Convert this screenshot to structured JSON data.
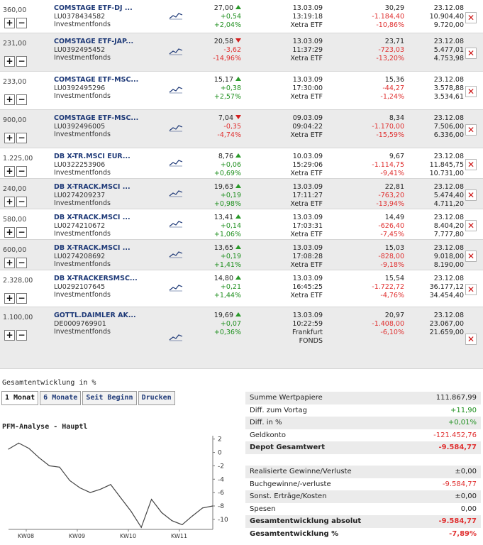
{
  "rows": [
    {
      "qty": "360,00",
      "name": "COMSTAGE ETF-DJ ...",
      "isin": "LU0378434582",
      "type": "Investmentfonds",
      "price": "27,00",
      "trend": "up",
      "chg": "+0,54",
      "pct": "+2,04%",
      "date": "13.03.09",
      "time": "13:19:18",
      "exchange": "Xetra ETF",
      "value": "30,29",
      "gain": "-1.184,40",
      "gainpct": "-10,86%",
      "sign": "neg",
      "buydate": "23.12.08",
      "buyval": "10.904,40",
      "curval": "9.720,00"
    },
    {
      "qty": "231,00",
      "name": "COMSTAGE ETF-JAP...",
      "isin": "LU0392495452",
      "type": "Investmentfonds",
      "price": "20,58",
      "trend": "down",
      "chg": "-3,62",
      "pct": "-14,96%",
      "date": "13.03.09",
      "time": "11:37:29",
      "exchange": "Xetra ETF",
      "value": "23,71",
      "gain": "-723,03",
      "gainpct": "-13,20%",
      "sign": "neg",
      "buydate": "23.12.08",
      "buyval": "5.477,01",
      "curval": "4.753,98"
    },
    {
      "qty": "233,00",
      "name": "COMSTAGE ETF-MSC...",
      "isin": "LU0392495296",
      "type": "Investmentfonds",
      "price": "15,17",
      "trend": "up",
      "chg": "+0,38",
      "pct": "+2,57%",
      "date": "13.03.09",
      "time": "17:30:00",
      "exchange": "Xetra ETF",
      "value": "15,36",
      "gain": "-44,27",
      "gainpct": "-1,24%",
      "sign": "neg",
      "buydate": "23.12.08",
      "buyval": "3.578,88",
      "curval": "3.534,61"
    },
    {
      "qty": "900,00",
      "name": "COMSTAGE ETF-MSC...",
      "isin": "LU0392496005",
      "type": "Investmentfonds",
      "price": "7,04",
      "trend": "down",
      "chg": "-0,35",
      "pct": "-4,74%",
      "date": "09.03.09",
      "time": "09:04:22",
      "exchange": "Xetra ETF",
      "value": "8,34",
      "gain": "-1.170,00",
      "gainpct": "-15,59%",
      "sign": "neg",
      "buydate": "23.12.08",
      "buyval": "7.506,00",
      "curval": "6.336,00"
    },
    {
      "qty": "1.225,00",
      "name": "DB X-TR.MSCI EUR...",
      "isin": "LU0322253906",
      "type": "Investmentfonds",
      "price": "8,76",
      "trend": "up",
      "chg": "+0,06",
      "pct": "+0,69%",
      "date": "10.03.09",
      "time": "15:29:06",
      "exchange": "Xetra ETF",
      "value": "9,67",
      "gain": "-1.114,75",
      "gainpct": "-9,41%",
      "sign": "neg",
      "buydate": "23.12.08",
      "buyval": "11.845,75",
      "curval": "10.731,00"
    },
    {
      "qty": "240,00",
      "name": "DB X-TRACK.MSCI ...",
      "isin": "LU0274209237",
      "type": "Investmentfonds",
      "price": "19,63",
      "trend": "up",
      "chg": "+0,19",
      "pct": "+0,98%",
      "date": "13.03.09",
      "time": "17:11:27",
      "exchange": "Xetra ETF",
      "value": "22,81",
      "gain": "-763,20",
      "gainpct": "-13,94%",
      "sign": "neg",
      "buydate": "23.12.08",
      "buyval": "5.474,40",
      "curval": "4.711,20"
    },
    {
      "qty": "580,00",
      "name": "DB X-TRACK.MSCI ...",
      "isin": "LU0274210672",
      "type": "Investmentfonds",
      "price": "13,41",
      "trend": "up",
      "chg": "+0,14",
      "pct": "+1,06%",
      "date": "13.03.09",
      "time": "17:03:31",
      "exchange": "Xetra ETF",
      "value": "14,49",
      "gain": "-626,40",
      "gainpct": "-7,45%",
      "sign": "neg",
      "buydate": "23.12.08",
      "buyval": "8.404,20",
      "curval": "7.777,80"
    },
    {
      "qty": "600,00",
      "name": "DB X-TRACK.MSCI ...",
      "isin": "LU0274208692",
      "type": "Investmentfonds",
      "price": "13,65",
      "trend": "up",
      "chg": "+0,19",
      "pct": "+1,41%",
      "date": "13.03.09",
      "time": "17:08:28",
      "exchange": "Xetra ETF",
      "value": "15,03",
      "gain": "-828,00",
      "gainpct": "-9,18%",
      "sign": "neg",
      "buydate": "23.12.08",
      "buyval": "9.018,00",
      "curval": "8.190,00"
    },
    {
      "qty": "2.328,00",
      "name": "DB X-TRACKERSMSC...",
      "isin": "LU0292107645",
      "type": "Investmentfonds",
      "price": "14,80",
      "trend": "up",
      "chg": "+0,21",
      "pct": "+1,44%",
      "date": "13.03.09",
      "time": "16:45:25",
      "exchange": "Xetra ETF",
      "value": "15,54",
      "gain": "-1.722,72",
      "gainpct": "-4,76%",
      "sign": "neg",
      "buydate": "23.12.08",
      "buyval": "36.177,12",
      "curval": "34.454,40"
    },
    {
      "qty": "1.100,00",
      "name": "GOTTL.DAIMLER AK...",
      "isin": "DE0009769901",
      "type": "Investmentfonds",
      "price": "19,69",
      "trend": "up",
      "chg": "+0,07",
      "pct": "+0,36%",
      "date": "13.03.09",
      "time": "10:22:59",
      "exchange": "Frankfurt",
      "exchange2": "FONDS",
      "value": "20,97",
      "gain": "-1.408,00",
      "gainpct": "-6,10%",
      "sign": "neg",
      "buydate": "23.12.08",
      "buyval": "23.067,00",
      "curval": "21.659,00"
    }
  ],
  "buttons": {
    "plus": "+",
    "minus": "−",
    "delete": "✕"
  },
  "section_title": "Gesamtentwicklung in %",
  "tabs": [
    "1 Monat",
    "6 Monate",
    "Seit Beginn",
    "Drucken"
  ],
  "chart_title": "PFM-Analyse - Hauptl",
  "summary": [
    {
      "label": "Summe Wertpapiere",
      "value": "111.867,99",
      "color": "default",
      "bold": false
    },
    {
      "label": "Diff. zum Vortag",
      "value": "+11,90",
      "color": "pos",
      "bold": false
    },
    {
      "label": "Diff. in %",
      "value": "+0,01%",
      "color": "pos",
      "bold": false
    },
    {
      "label": "Geldkonto",
      "value": "-121.452,76",
      "color": "neg",
      "bold": false
    },
    {
      "label": "Depot Gesamtwert",
      "value": "-9.584,77",
      "color": "neg",
      "bold": true
    },
    {
      "gap": true
    },
    {
      "label": "Realisierte Gewinne/Verluste",
      "value": "±0,00",
      "color": "default",
      "bold": false
    },
    {
      "label": "Buchgewinne/-verluste",
      "value": "-9.584,77",
      "color": "neg",
      "bold": false
    },
    {
      "label": "Sonst. Erträge/Kosten",
      "value": "±0,00",
      "color": "default",
      "bold": false
    },
    {
      "label": "Spesen",
      "value": "0,00",
      "color": "default",
      "bold": false
    },
    {
      "label": "Gesamtentwicklung absolut",
      "value": "-9.584,77",
      "color": "neg",
      "bold": true
    },
    {
      "label": "Gesamtentwicklung %",
      "value": "-7,89%",
      "color": "neg",
      "bold": true
    }
  ],
  "chart_data": {
    "type": "line",
    "title": "PFM-Analyse - Hauptl",
    "x_tick_labels": [
      "KW08",
      "KW09",
      "KW10",
      "KW11"
    ],
    "y_ticks": [
      2,
      0,
      -2,
      -4,
      -6,
      -8,
      -10
    ],
    "ylim": [
      -11.5,
      2.5
    ],
    "series": [
      {
        "values": [
          0.5,
          1.4,
          0.6,
          -0.8,
          -2.0,
          -2.2,
          -4.2,
          -5.3,
          -6.0,
          -5.5,
          -4.8,
          -6.8,
          -8.8,
          -11.2,
          -7.0,
          -9.0,
          -10.2,
          -10.8,
          -9.5,
          -8.3,
          -8.0
        ]
      }
    ],
    "grid": false
  }
}
